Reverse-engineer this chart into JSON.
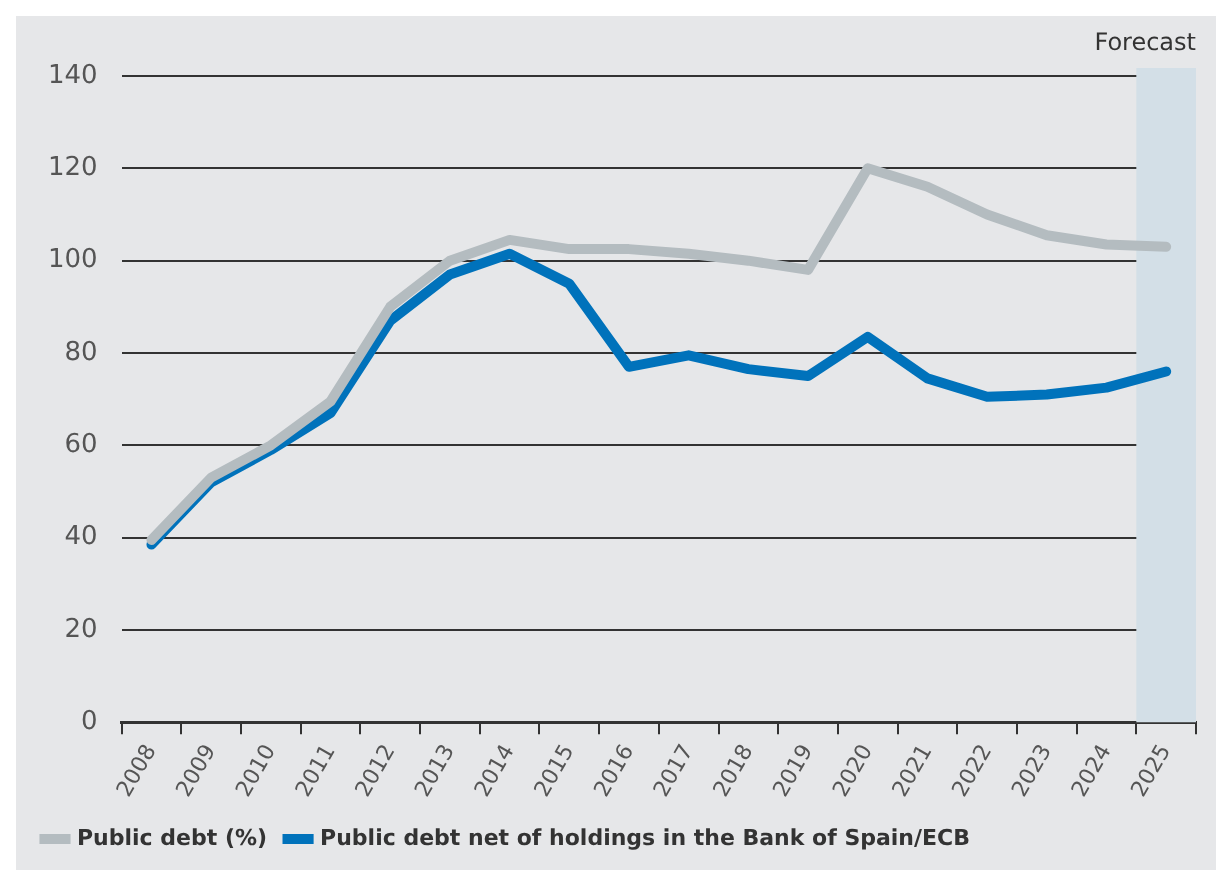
{
  "chart_data": {
    "type": "line",
    "categories": [
      "2008",
      "2009",
      "2010",
      "2011",
      "2012",
      "2013",
      "2014",
      "2015",
      "2016",
      "2017",
      "2018",
      "2019",
      "2020",
      "2021",
      "2022",
      "2023",
      "2024",
      "2025"
    ],
    "series": [
      {
        "name": "Public debt (%)",
        "color": "#b4bcc0",
        "values": [
          39.5,
          53,
          60,
          69.5,
          90,
          100,
          104.5,
          102.5,
          102.5,
          101.5,
          100,
          98,
          120,
          116,
          110,
          105.5,
          103.5,
          103
        ]
      },
      {
        "name": "Public debt net of holdings in the Bank of Spain/ECB",
        "color": "#0072bb",
        "values": [
          38.5,
          52,
          59,
          67,
          87,
          97,
          101.5,
          95,
          77,
          79.5,
          76.5,
          75,
          83.5,
          74.5,
          70.5,
          71,
          72.5,
          76
        ]
      }
    ],
    "ylim": [
      0,
      140
    ],
    "yticks": [
      0,
      20,
      40,
      60,
      80,
      100,
      120,
      140
    ],
    "bands": [
      {
        "axis": "x",
        "from": "2025",
        "to": "2025",
        "label": "Forecast",
        "color": "#d3dfe7"
      }
    ],
    "grid": "y",
    "legend": "bottom",
    "marker": "none",
    "line_style": "solid"
  }
}
